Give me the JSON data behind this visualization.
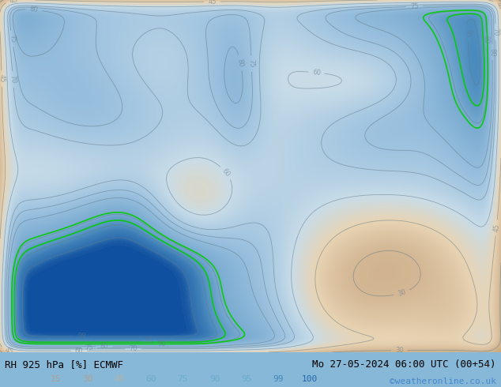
{
  "title_left": "RH 925 hPa [%] ECMWF",
  "title_right": "Mo 27-05-2024 06:00 UTC (00+54)",
  "copyright": "©weatheronline.co.uk",
  "colorbar_values": [
    15,
    30,
    45,
    60,
    75,
    90,
    95,
    99,
    100
  ],
  "colorbar_colors": [
    "#c8a878",
    "#d4b896",
    "#e8d4b4",
    "#c8dce8",
    "#a0c4e0",
    "#78aad0",
    "#5090c0",
    "#3070b0",
    "#1050a0"
  ],
  "bg_color": "#87b8d8",
  "fig_width": 6.34,
  "fig_height": 4.9,
  "dpi": 100,
  "label_color_left": "#000000",
  "label_color_right": "#000000",
  "copyright_color": "#4488cc",
  "bottom_bg": "#c8dff0",
  "colorbar_label_colors": [
    "#b0a090",
    "#b0a090",
    "#b8b0a0",
    "#6aaccc",
    "#6aaccc",
    "#6aaccc",
    "#6aaccc",
    "#4488bb",
    "#2266aa"
  ],
  "cmap_levels": [
    15,
    30,
    45,
    60,
    75,
    90,
    95,
    99,
    100
  ],
  "cmap_colors": [
    "#c8a878",
    "#d4b896",
    "#e8d4b4",
    "#c8dce8",
    "#a0c4e0",
    "#78aad0",
    "#5090c0",
    "#3070b0",
    "#1050a0"
  ],
  "contour_color": "#607a8a",
  "green_contour_color": "#00cc00",
  "label_fontsize": 9,
  "cb_fontsize": 8,
  "copyright_fontsize": 8
}
